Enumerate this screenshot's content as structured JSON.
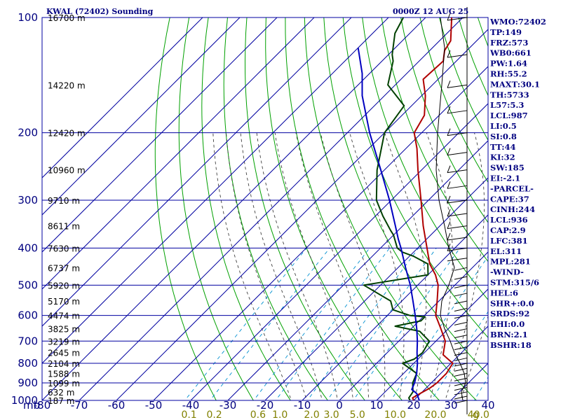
{
  "header": {
    "station": "KWAL (72402) Sounding",
    "time": "0000Z 12 AUG 25"
  },
  "colors": {
    "grid": "#0000a0",
    "dry_adiabat": "#00a000",
    "moist_adiabat": "#404040",
    "mixing_ratio": "#0090d0",
    "temperature": "#b00000",
    "dewpoint": "#004000",
    "parcel": "#0000c0",
    "wind": "#000000"
  },
  "axes": {
    "pressure_unit": "mb",
    "pressure_ticks": [
      "100",
      "200",
      "300",
      "400",
      "500",
      "600",
      "700",
      "800",
      "900",
      "1000"
    ],
    "temp_ticks": [
      "-80",
      "-70",
      "-60",
      "-50",
      "-40",
      "-30",
      "-20",
      "-10",
      "0",
      "10",
      "20",
      "30",
      "40"
    ],
    "mixing_ratio_ticks": [
      "0.1",
      "0.2",
      "0.6",
      "1.0",
      "2.0",
      "3.0",
      "5.0",
      "10.0",
      "20.0",
      "40.0"
    ],
    "mixing_ratio_unit": "g",
    "height_labels": [
      "16700 m",
      "14220 m",
      "12420 m",
      "10960 m",
      "9710 m",
      "8611 m",
      "7630 m",
      "6737 m",
      "5920 m",
      "5170 m",
      "4474 m",
      "3825 m",
      "3219 m",
      "2645 m",
      "2104 m",
      "1588 m",
      "1099 m",
      "632 m",
      "187 m"
    ]
  },
  "indices": [
    "WMO:72402",
    "TP:149",
    "FRZ:573",
    "WB0:661",
    "PW:1.64",
    "RH:55.2",
    "MAXT:30.1",
    "TH:5733",
    "L57:5.3",
    "LCL:987",
    "LI:0.5",
    "SI:0.8",
    "TT:44",
    "KI:32",
    "SW:185",
    "EI:-2.1",
    "-PARCEL-",
    "CAPE:37",
    "CINH:244",
    "LCL:936",
    "CAP:2.9",
    "LFC:381",
    "EL:311",
    "MPL:281",
    "-WIND-",
    "STM:315/6",
    "HEL:6",
    "SHR+:0.0",
    "SRDS:92",
    "EHI:0.0",
    "BRN:2.1",
    "BSHR:18"
  ],
  "chart_data": {
    "type": "line",
    "title": "KWAL (72402) Sounding",
    "xlabel": "",
    "ylabel": "mb",
    "xlim": [
      -80,
      40
    ],
    "ylim": [
      1000,
      100
    ],
    "y_scale": "log",
    "skew": true,
    "grid": true,
    "series": [
      {
        "key": "temperature",
        "points": [
          [
            1000,
            20.0
          ],
          [
            985,
            19.0
          ],
          [
            955,
            20.0
          ],
          [
            930,
            21.0
          ],
          [
            900,
            21.5
          ],
          [
            850,
            21.5
          ],
          [
            800,
            20.5
          ],
          [
            760,
            15.6
          ],
          [
            700,
            12.5
          ],
          [
            650,
            8.0
          ],
          [
            600,
            3.0
          ],
          [
            550,
            -0.5
          ],
          [
            500,
            -4.5
          ],
          [
            470,
            -8.0
          ],
          [
            440,
            -12.5
          ],
          [
            400,
            -17.5
          ],
          [
            350,
            -24.5
          ],
          [
            300,
            -32.0
          ],
          [
            250,
            -41.0
          ],
          [
            220,
            -47.0
          ],
          [
            200,
            -52.0
          ],
          [
            180,
            -54.0
          ],
          [
            160,
            -59.0
          ],
          [
            145,
            -64.0
          ],
          [
            130,
            -63.5
          ],
          [
            122,
            -66.0
          ],
          [
            115,
            -67.0
          ],
          [
            100,
            -73.0
          ]
        ]
      },
      {
        "key": "dewpoint",
        "points": [
          [
            1000,
            19.0
          ],
          [
            985,
            18.0
          ],
          [
            950,
            17.5
          ],
          [
            930,
            16.5
          ],
          [
            900,
            15.0
          ],
          [
            850,
            13.5
          ],
          [
            800,
            7.0
          ],
          [
            780,
            9.0
          ],
          [
            750,
            9.5
          ],
          [
            700,
            8.2
          ],
          [
            660,
            3.0
          ],
          [
            640,
            -5.0
          ],
          [
            620,
            0.5
          ],
          [
            605,
            0.5
          ],
          [
            600,
            -4.0
          ],
          [
            580,
            -10.0
          ],
          [
            550,
            -13.0
          ],
          [
            500,
            -24.5
          ],
          [
            470,
            -10.0
          ],
          [
            440,
            -13.0
          ],
          [
            420,
            -19.0
          ],
          [
            410,
            -23.0
          ],
          [
            400,
            -25.5
          ],
          [
            370,
            -30.0
          ],
          [
            360,
            -32.0
          ],
          [
            330,
            -38.0
          ],
          [
            300,
            -44.0
          ],
          [
            250,
            -52.0
          ],
          [
            200,
            -60.0
          ],
          [
            170,
            -62.0
          ],
          [
            150,
            -72.0
          ],
          [
            130,
            -77.0
          ],
          [
            125,
            -79.0
          ],
          [
            110,
            -84.0
          ],
          [
            100,
            -86.0
          ]
        ]
      },
      {
        "key": "parcel",
        "points": [
          [
            1000,
            21.5
          ],
          [
            960,
            19.0
          ],
          [
            936,
            16.5
          ],
          [
            900,
            15.5
          ],
          [
            850,
            13.5
          ],
          [
            800,
            11.0
          ],
          [
            750,
            8.0
          ],
          [
            700,
            5.0
          ],
          [
            650,
            1.5
          ],
          [
            600,
            -2.5
          ],
          [
            550,
            -7.0
          ],
          [
            500,
            -12.0
          ],
          [
            450,
            -18.0
          ],
          [
            400,
            -24.5
          ],
          [
            380,
            -27.5
          ],
          [
            350,
            -32.0
          ],
          [
            300,
            -40.5
          ],
          [
            250,
            -51.0
          ],
          [
            200,
            -64.0
          ],
          [
            160,
            -76.0
          ],
          [
            140,
            -82.0
          ],
          [
            120,
            -90.0
          ]
        ]
      }
    ]
  }
}
